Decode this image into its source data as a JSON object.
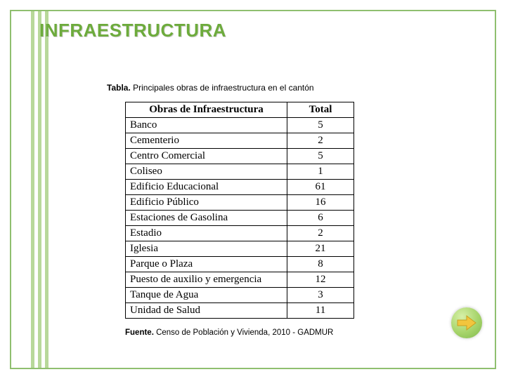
{
  "title": "INFRAESTRUCTURA",
  "caption_top_bold": "Tabla.",
  "caption_top_rest": " Principales obras de infraestructura en el cantón",
  "table": {
    "header_name": "Obras de Infraestructura",
    "header_total": "Total",
    "rows": [
      {
        "name": "Banco",
        "total": "5"
      },
      {
        "name": "Cementerio",
        "total": "2"
      },
      {
        "name": "Centro Comercial",
        "total": "5"
      },
      {
        "name": "Coliseo",
        "total": "1"
      },
      {
        "name": "Edificio Educacional",
        "total": "61"
      },
      {
        "name": "Edificio Público",
        "total": "16"
      },
      {
        "name": "Estaciones de Gasolina",
        "total": "6"
      },
      {
        "name": "Estadio",
        "total": "2"
      },
      {
        "name": "Iglesia",
        "total": "21"
      },
      {
        "name": "Parque o Plaza",
        "total": "8"
      },
      {
        "name": "Puesto de auxilio y emergencia",
        "total": "12"
      },
      {
        "name": "Tanque de Agua",
        "total": "3"
      },
      {
        "name": "Unidad de Salud",
        "total": "11"
      }
    ]
  },
  "caption_bottom_bold": "Fuente.",
  "caption_bottom_rest": " Censo de Población y Vivienda, 2010 - GADMUR",
  "colors": {
    "accent": "#6dab3c",
    "frame": "#8fbf6f",
    "stripe": "#b8d89a",
    "arrow_fill": "#f2c53d",
    "arrow_stroke": "#c9a020"
  }
}
